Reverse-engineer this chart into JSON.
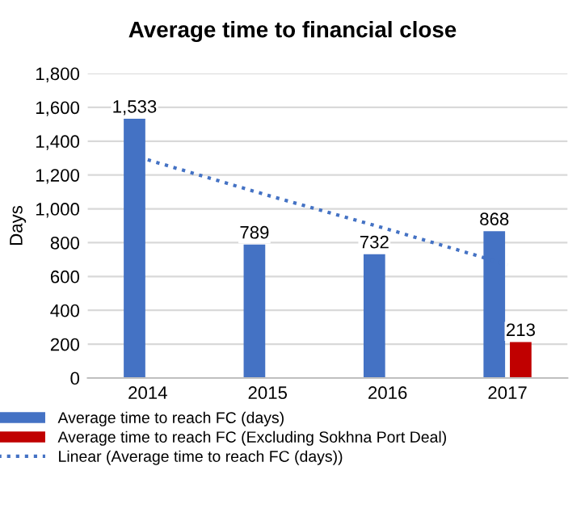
{
  "chart_data": {
    "type": "bar",
    "title": "Average time to financial close",
    "ylabel": "Days",
    "categories": [
      "2014",
      "2015",
      "2016",
      "2017"
    ],
    "series": [
      {
        "name": "Average time to reach FC (days)",
        "color": "#4472c4",
        "values": [
          1533,
          789,
          732,
          868
        ],
        "value_labels": [
          "1,533",
          "789",
          "732",
          "868"
        ]
      },
      {
        "name": "Average time to reach FC (Excluding Sokhna Port Deal)",
        "color": "#c00000",
        "values": [
          null,
          null,
          null,
          213
        ],
        "value_labels": [
          null,
          null,
          null,
          "213"
        ]
      },
      {
        "name": "Linear (Average time to reach FC (days))",
        "color": "#4472c4",
        "type": "line",
        "line_style": "dotted",
        "values": [
          1290,
          1080,
          880,
          670
        ]
      }
    ],
    "ylim": [
      0,
      1800
    ],
    "yticks": [
      {
        "value": 0,
        "label": "0"
      },
      {
        "value": 200,
        "label": "200"
      },
      {
        "value": 400,
        "label": "400"
      },
      {
        "value": 600,
        "label": "600"
      },
      {
        "value": 800,
        "label": "800"
      },
      {
        "value": 1000,
        "label": "1,000"
      },
      {
        "value": 1200,
        "label": "1,200"
      },
      {
        "value": 1400,
        "label": "1,400"
      },
      {
        "value": 1600,
        "label": "1,600"
      },
      {
        "value": 1800,
        "label": "1,800"
      }
    ],
    "grid": "y",
    "legend": "bottom"
  }
}
